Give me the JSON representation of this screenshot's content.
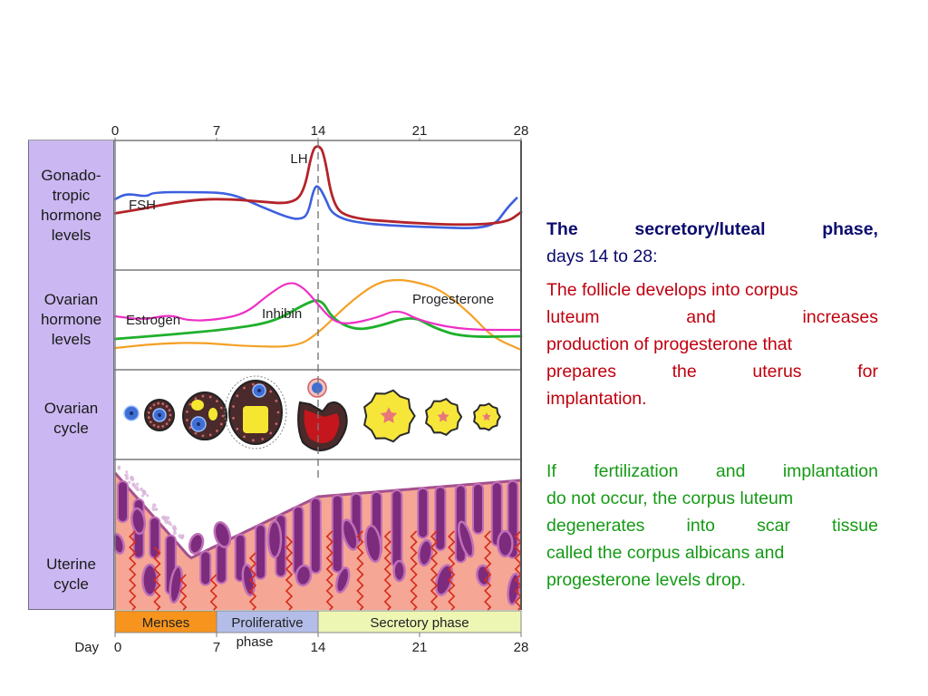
{
  "diagram": {
    "top_axis_ticks": [
      "0",
      "7",
      "14",
      "21",
      "28"
    ],
    "bottom_axis_ticks": [
      "0",
      "7",
      "14",
      "21",
      "28"
    ],
    "bottom_axis_label": "Day",
    "panels": [
      {
        "label_lines": [
          "Gonado-",
          "tropic",
          "hormone",
          "levels"
        ]
      },
      {
        "label_lines": [
          "Ovarian",
          "hormone",
          "levels"
        ]
      },
      {
        "label_lines": [
          "Ovarian",
          "cycle"
        ]
      },
      {
        "label_lines": [
          "Uterine",
          "cycle"
        ]
      }
    ],
    "curve_labels": {
      "lh": "LH",
      "fsh": "FSH",
      "estrogen": "Estrogen",
      "inhibin": "Inhibin",
      "progesterone": "Progesterone"
    },
    "phases": [
      {
        "label": "Menses",
        "start_day": 0,
        "end_day": 7,
        "color": "#f7941d"
      },
      {
        "label": "Proliferative",
        "label2": "phase",
        "start_day": 7,
        "end_day": 14,
        "color": "#b3bde8"
      },
      {
        "label": "Secretory phase",
        "start_day": 14,
        "end_day": 28,
        "color": "#eef6b4"
      }
    ],
    "colors": {
      "label_panel": "#cbb8f2",
      "lh": "#b3242a",
      "fsh": "#3d5fe0",
      "estrogen": "#ee2fc6",
      "inhibin": "#1fb02c",
      "progesterone": "#f5a025",
      "endometrium": "#f5a694",
      "gland": "#8c3a8c"
    },
    "series": {
      "lh": [
        [
          0,
          4.2
        ],
        [
          2,
          4.6
        ],
        [
          4,
          5.1
        ],
        [
          6,
          5.4
        ],
        [
          8,
          5.4
        ],
        [
          10,
          5.2
        ],
        [
          12,
          5.0
        ],
        [
          13,
          5.8
        ],
        [
          13.6,
          9.6
        ],
        [
          14,
          10
        ],
        [
          14.4,
          9.4
        ],
        [
          15,
          5.0
        ],
        [
          16,
          3.8
        ],
        [
          20,
          3.4
        ],
        [
          24,
          3.2
        ],
        [
          27,
          3.4
        ],
        [
          28,
          4.3
        ]
      ],
      "fsh": [
        [
          0,
          5.4
        ],
        [
          0.8,
          5.9
        ],
        [
          2.2,
          5.6
        ],
        [
          2.6,
          6.0
        ],
        [
          6,
          6.0
        ],
        [
          8,
          5.9
        ],
        [
          10,
          4.8
        ],
        [
          12,
          3.8
        ],
        [
          12.8,
          3.7
        ],
        [
          13.3,
          4.1
        ],
        [
          13.7,
          6.3
        ],
        [
          14,
          6.6
        ],
        [
          14.5,
          5.5
        ],
        [
          15,
          4.0
        ],
        [
          17,
          3.3
        ],
        [
          22,
          3.0
        ],
        [
          26,
          2.9
        ],
        [
          27,
          4.6
        ],
        [
          27.7,
          5.5
        ]
      ],
      "estrogen": [
        [
          0,
          5.5
        ],
        [
          2,
          5.1
        ],
        [
          3.8,
          5.7
        ],
        [
          5,
          5.0
        ],
        [
          7,
          5.1
        ],
        [
          9,
          5.8
        ],
        [
          10.5,
          7.8
        ],
        [
          12,
          9.4
        ],
        [
          13,
          8.7
        ],
        [
          14,
          6.8
        ],
        [
          15,
          5.0
        ],
        [
          16,
          4.6
        ],
        [
          18,
          5.3
        ],
        [
          19.5,
          6.3
        ],
        [
          21,
          5.0
        ],
        [
          24,
          4.0
        ],
        [
          28,
          4.0
        ]
      ],
      "inhibin": [
        [
          0,
          3.0
        ],
        [
          4,
          3.5
        ],
        [
          8,
          4.1
        ],
        [
          11,
          4.9
        ],
        [
          13,
          6.8
        ],
        [
          14.2,
          7.5
        ],
        [
          15,
          5.2
        ],
        [
          16.5,
          4.0
        ],
        [
          18,
          4.3
        ],
        [
          20.5,
          5.6
        ],
        [
          22,
          4.2
        ],
        [
          24,
          3.2
        ],
        [
          28,
          3.3
        ]
      ],
      "progesterone": [
        [
          0,
          2.0
        ],
        [
          3,
          2.5
        ],
        [
          6,
          2.6
        ],
        [
          9,
          2.2
        ],
        [
          12.5,
          2.1
        ],
        [
          14,
          3.6
        ],
        [
          16,
          6.8
        ],
        [
          18,
          9.2
        ],
        [
          19.5,
          9.6
        ],
        [
          21,
          9.2
        ],
        [
          22.5,
          8.4
        ],
        [
          24.5,
          5.8
        ],
        [
          26,
          3.2
        ],
        [
          28,
          1.8
        ]
      ]
    }
  },
  "text": {
    "title_bold_words": [
      "The",
      "secretory/luteal",
      "phase,"
    ],
    "title_rest": "days 14 to 28:",
    "para_red": "The follicle develops into corpus luteum and increases production of progesterone that prepares the uterus for implantation.",
    "para_red_lines": [
      [
        "The follicle develops into corpus"
      ],
      [
        "luteum",
        "and",
        "increases"
      ],
      [
        "production of progesterone that"
      ],
      [
        "prepares",
        "the",
        "uterus",
        "for"
      ],
      [
        "implantation."
      ]
    ],
    "para_green": "If fertilization and implantation do not occur, the corpus luteum degenerates into scar tissue called the corpus albicans and progesterone levels drop.",
    "para_green_lines": [
      [
        "If",
        "fertilization",
        "and",
        "implantation"
      ],
      [
        "do not occur, the corpus luteum"
      ],
      [
        "degenerates",
        "into",
        "scar",
        "tissue"
      ],
      [
        "called the corpus albicans and"
      ],
      [
        "progesterone levels drop."
      ]
    ]
  }
}
